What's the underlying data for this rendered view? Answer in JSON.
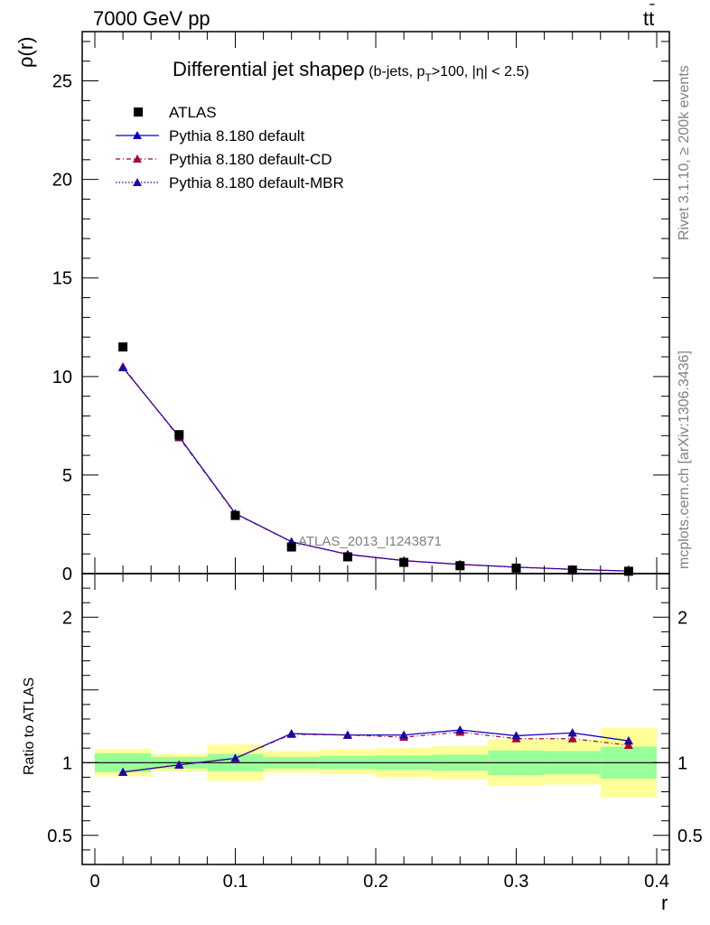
{
  "header": {
    "left": "7000 GeV pp",
    "right_main": "tt",
    "right_bar": "̄"
  },
  "side_labels": {
    "rivet": "Rivet 3.1.10, ≥ 200k events",
    "mcplots": "mcplots.cern.ch [arXiv:1306.3436]"
  },
  "title": {
    "main": "Differential jet shapeρ",
    "sub_a": " (b-jets, p",
    "sub_sub": "T",
    "sub_b": ">100, |η| < 2.5)"
  },
  "watermark": "ATLAS_2013_I1243871",
  "colors": {
    "data": "#000000",
    "default": "#0000cc",
    "cd": "#aa0033",
    "mbr": "#2200aa",
    "band_inner": "#99ff99",
    "band_outer": "#ffff99"
  },
  "chart_data": {
    "type": "scatter",
    "xlabel": "r",
    "x": [
      0.02,
      0.06,
      0.1,
      0.14,
      0.18,
      0.22,
      0.26,
      0.3,
      0.34,
      0.38
    ],
    "bin_edges": [
      0.0,
      0.04,
      0.08,
      0.12,
      0.16,
      0.2,
      0.24,
      0.28,
      0.32,
      0.36,
      0.4
    ],
    "legend": [
      {
        "key": "data",
        "label": "ATLAS"
      },
      {
        "key": "default",
        "label": "Pythia 8.180 default"
      },
      {
        "key": "cd",
        "label": "Pythia 8.180 default-CD"
      },
      {
        "key": "mbr",
        "label": "Pythia 8.180 default-MBR"
      }
    ],
    "main": {
      "ylabel": "ρ(r)",
      "ylim": [
        0,
        27.5
      ],
      "yticks": [
        0,
        5,
        10,
        15,
        20,
        25
      ],
      "series": [
        {
          "key": "data",
          "name": "ATLAS",
          "values": [
            11.5,
            7.05,
            2.95,
            1.35,
            0.85,
            0.57,
            0.4,
            0.28,
            0.18,
            0.12
          ]
        },
        {
          "key": "default",
          "name": "Pythia 8.180 default",
          "values": [
            10.45,
            6.95,
            3.05,
            1.62,
            0.98,
            0.66,
            0.47,
            0.33,
            0.22,
            0.13
          ]
        },
        {
          "key": "cd",
          "name": "Pythia 8.180 default-CD",
          "values": [
            10.5,
            6.9,
            3.03,
            1.61,
            0.97,
            0.65,
            0.47,
            0.32,
            0.21,
            0.13
          ]
        },
        {
          "key": "mbr",
          "name": "Pythia 8.180 default-MBR",
          "values": [
            10.45,
            6.95,
            3.05,
            1.62,
            0.98,
            0.66,
            0.47,
            0.33,
            0.22,
            0.13
          ]
        }
      ]
    },
    "ratio": {
      "ylabel": "Ratio to ATLAS",
      "ylim": [
        0.3,
        2.3
      ],
      "yticks": [
        0.5,
        1,
        2
      ],
      "ytick_labels": [
        "0.5",
        "1",
        "2"
      ],
      "band_inner_lo": [
        0.935,
        0.96,
        0.94,
        0.96,
        0.955,
        0.95,
        0.945,
        0.915,
        0.92,
        0.89
      ],
      "band_inner_hi": [
        1.065,
        1.04,
        1.06,
        1.04,
        1.045,
        1.05,
        1.055,
        1.085,
        1.08,
        1.11
      ],
      "band_outer_lo": [
        0.905,
        0.94,
        0.875,
        0.93,
        0.92,
        0.9,
        0.885,
        0.84,
        0.85,
        0.76
      ],
      "band_outer_hi": [
        1.095,
        1.06,
        1.125,
        1.08,
        1.09,
        1.1,
        1.115,
        1.16,
        1.16,
        1.24
      ],
      "series": [
        {
          "key": "default",
          "values": [
            0.935,
            0.985,
            1.03,
            1.2,
            1.19,
            1.19,
            1.225,
            1.185,
            1.205,
            1.15
          ]
        },
        {
          "key": "cd",
          "values": [
            0.935,
            0.985,
            1.03,
            1.195,
            1.19,
            1.175,
            1.21,
            1.165,
            1.165,
            1.12
          ]
        },
        {
          "key": "mbr",
          "values": [
            0.935,
            0.985,
            1.03,
            1.2,
            1.19,
            1.19,
            1.225,
            1.185,
            1.205,
            1.15
          ]
        }
      ]
    },
    "xticks": [
      0,
      0.1,
      0.2,
      0.3,
      0.4
    ],
    "xtick_labels": [
      "0",
      "0.1",
      "0.2",
      "0.3",
      "0.4"
    ]
  }
}
